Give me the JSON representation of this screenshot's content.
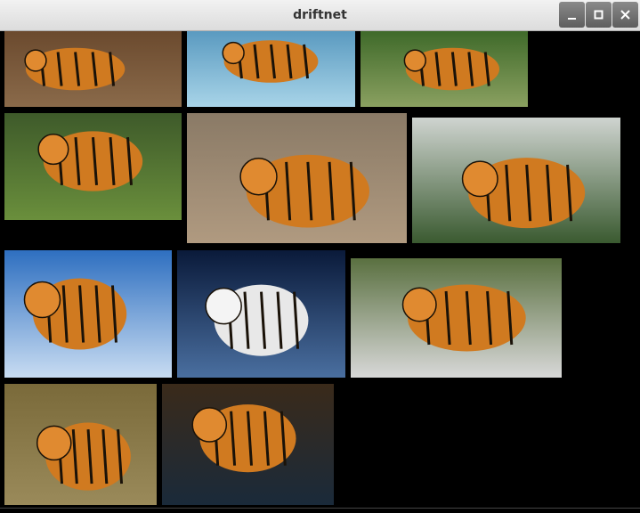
{
  "window": {
    "title": "driftnet"
  }
}
